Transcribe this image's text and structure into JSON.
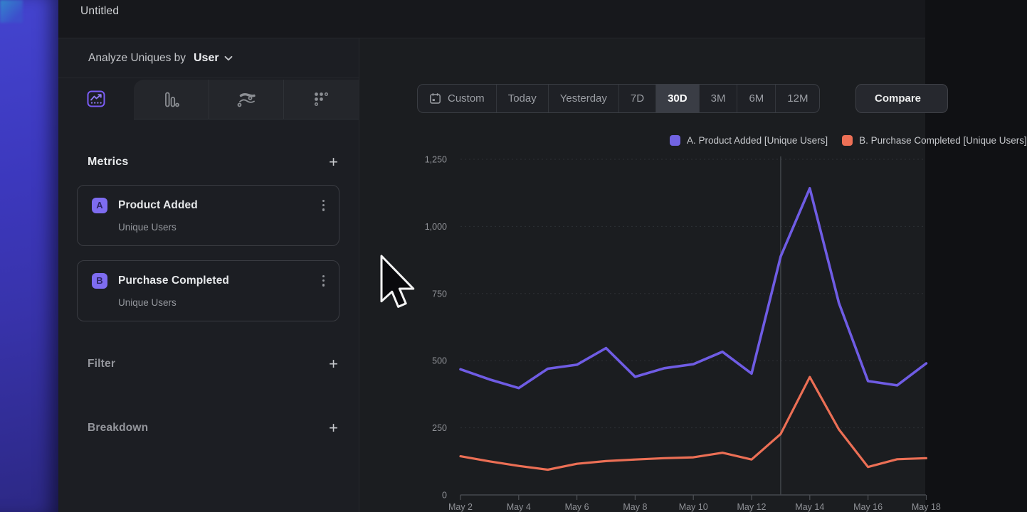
{
  "window": {
    "title": "Untitled"
  },
  "sidebar": {
    "analyze_prefix": "Analyze Uniques by",
    "entity": "User",
    "tabs": [
      {
        "icon": "line-chart",
        "selected": true
      },
      {
        "icon": "funnel",
        "selected": false
      },
      {
        "icon": "flows",
        "selected": false
      },
      {
        "icon": "retention",
        "selected": false
      }
    ],
    "metrics": {
      "heading": "Metrics",
      "items": [
        {
          "letter": "A",
          "title": "Product Added",
          "subtitle": "Unique Users"
        },
        {
          "letter": "B",
          "title": "Purchase Completed",
          "subtitle": "Unique Users"
        }
      ]
    },
    "filter_heading": "Filter",
    "breakdown_heading": "Breakdown"
  },
  "icons": {
    "plus": "+"
  },
  "toolbar": {
    "date_ranges": [
      "Custom",
      "Today",
      "Yesterday",
      "7D",
      "30D",
      "3M",
      "6M",
      "12M"
    ],
    "selected_range": "30D",
    "compare_label": "Compare"
  },
  "legend": [
    {
      "label": "A. Product Added [Unique Users]",
      "color": "#7163e2"
    },
    {
      "label": "B. Purchase Completed [Unique Users]",
      "color": "#ed7056"
    }
  ],
  "colors": {
    "series_purple": "#6f5ce4",
    "series_orange": "#ec6f55",
    "accent_badge": "#7e6cf0",
    "selected_tab_border": "#7a5cf5"
  },
  "chart_data": {
    "type": "line",
    "x": [
      "May 2",
      "May 3",
      "May 4",
      "May 5",
      "May 6",
      "May 7",
      "May 8",
      "May 9",
      "May 10",
      "May 11",
      "May 12",
      "May 13",
      "May 14",
      "May 15",
      "May 16",
      "May 17",
      "May 18"
    ],
    "x_tick_labels": [
      "May 2",
      "May 4",
      "May 6",
      "May 8",
      "May 10",
      "May 12",
      "May 14",
      "May 16",
      "May 18"
    ],
    "y_ticks": [
      {
        "value": 0,
        "label": "0"
      },
      {
        "value": 250,
        "label": "250"
      },
      {
        "value": 500,
        "label": "500"
      },
      {
        "value": 750,
        "label": "750"
      },
      {
        "value": 1000,
        "label": "1,000"
      },
      {
        "value": 1250,
        "label": "1,250"
      }
    ],
    "ylim": [
      0,
      1250
    ],
    "grid": "dashed-horizontal",
    "legend_position": "top-right",
    "vline_x": "May 13",
    "series": [
      {
        "name": "A. Product Added [Unique Users]",
        "color": "#6f5ce4",
        "values": [
          468,
          430,
          398,
          470,
          485,
          547,
          440,
          472,
          487,
          533,
          452,
          888,
          1142,
          715,
          424,
          408,
          490
        ]
      },
      {
        "name": "B. Purchase Completed [Unique Users]",
        "color": "#ec6f55",
        "values": [
          144,
          125,
          108,
          94,
          116,
          126,
          132,
          137,
          140,
          157,
          132,
          227,
          439,
          244,
          104,
          133,
          137
        ]
      }
    ]
  }
}
